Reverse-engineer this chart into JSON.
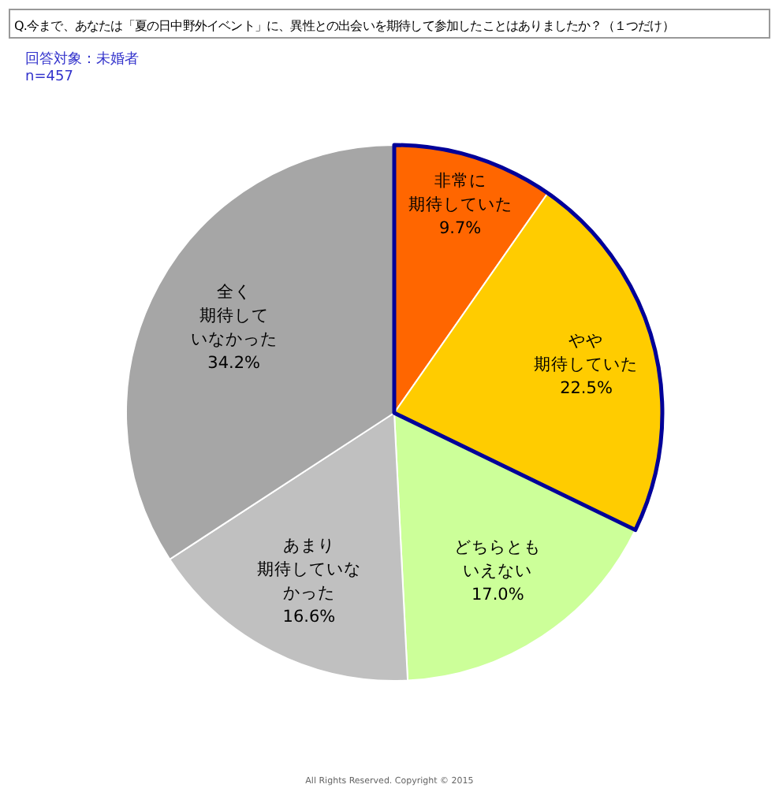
{
  "chart_data": {
    "type": "pie",
    "title": "Q.今まで、あなたは「夏の日中野外イベント」に、異性との出会いを期待して参加したことはありましたか？（１つだけ）",
    "subtitle": "回答対象：未婚者",
    "categories": [
      "非常に期待していた",
      "やや期待していた",
      "どちらともいえない",
      "あまり期待していなかった",
      "全く期待していなかった"
    ],
    "values": [
      9.7,
      22.5,
      17.0,
      16.6,
      34.2
    ],
    "value_labels": [
      "9.7%",
      "22.5%",
      "17.0%",
      "16.6%",
      "34.2%"
    ],
    "colors": [
      "#ff6600",
      "#ffcc00",
      "#ccff99",
      "#c0c0c0",
      "#a6a6a6"
    ],
    "annotations": [
      "n=457",
      "All Rights Reserved. Copyright © 2015"
    ],
    "legend": false
  }
}
